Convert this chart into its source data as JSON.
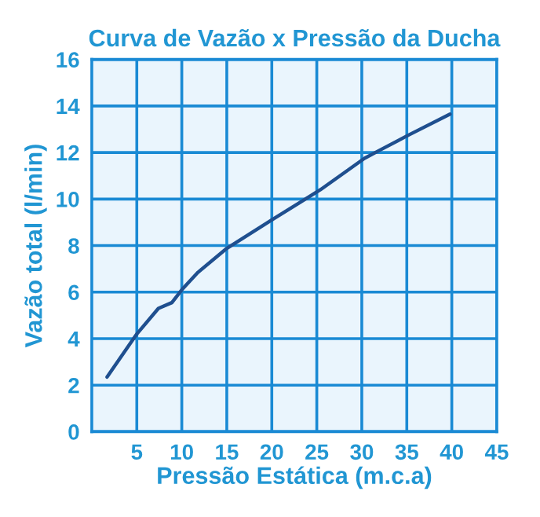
{
  "chart_data": {
    "type": "line",
    "title": "Curva de Vazão x Pressão da Ducha",
    "xlabel": "Pressão Estática (m.c.a)",
    "ylabel": "Vazão total (l/min)",
    "series": [
      {
        "color": "#1f4f8f",
        "x": [
          1.7,
          5,
          7.4,
          8.9,
          10,
          11.8,
          14.9,
          20,
          25.4,
          30.3,
          32,
          35.2,
          39.8
        ],
        "values": [
          2.35,
          4.2,
          5.3,
          5.55,
          6.1,
          6.85,
          7.85,
          9.1,
          10.4,
          11.75,
          12.1,
          12.75,
          13.65
        ]
      }
    ],
    "xlim": [
      0,
      45
    ],
    "xticks": [
      5,
      10,
      15,
      20,
      25,
      30,
      35,
      40,
      45
    ],
    "ylim": [
      0,
      16
    ],
    "yticks": [
      0,
      2,
      4,
      6,
      8,
      10,
      12,
      14,
      16
    ],
    "grid": true,
    "marker": "none",
    "line_style": "solid"
  }
}
